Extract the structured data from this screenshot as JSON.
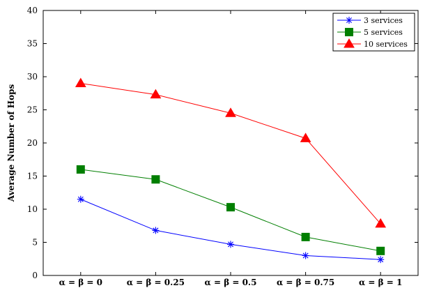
{
  "chart_data": {
    "type": "line",
    "title": "",
    "xlabel": "",
    "ylabel": "Average Number of Hops",
    "categories": [
      "α = β = 0",
      "α = β = 0.25",
      "α = β = 0.5",
      "α = β = 0.75",
      "α = β = 1"
    ],
    "ylim": [
      0,
      40
    ],
    "yticks": [
      0,
      5,
      10,
      15,
      20,
      25,
      30,
      35,
      40
    ],
    "grid": false,
    "legend_position": "top-right",
    "series": [
      {
        "name": "3   services",
        "color": "#0000ff",
        "marker": "asterisk",
        "values": [
          11.5,
          6.8,
          4.7,
          3.0,
          2.4
        ]
      },
      {
        "name": "5   services",
        "color": "#007f00",
        "marker": "square",
        "values": [
          16.0,
          14.5,
          10.3,
          5.8,
          3.7
        ]
      },
      {
        "name": "10 services",
        "color": "#ff0000",
        "marker": "triangle",
        "values": [
          29.0,
          27.3,
          24.5,
          20.7,
          7.8
        ]
      }
    ]
  }
}
